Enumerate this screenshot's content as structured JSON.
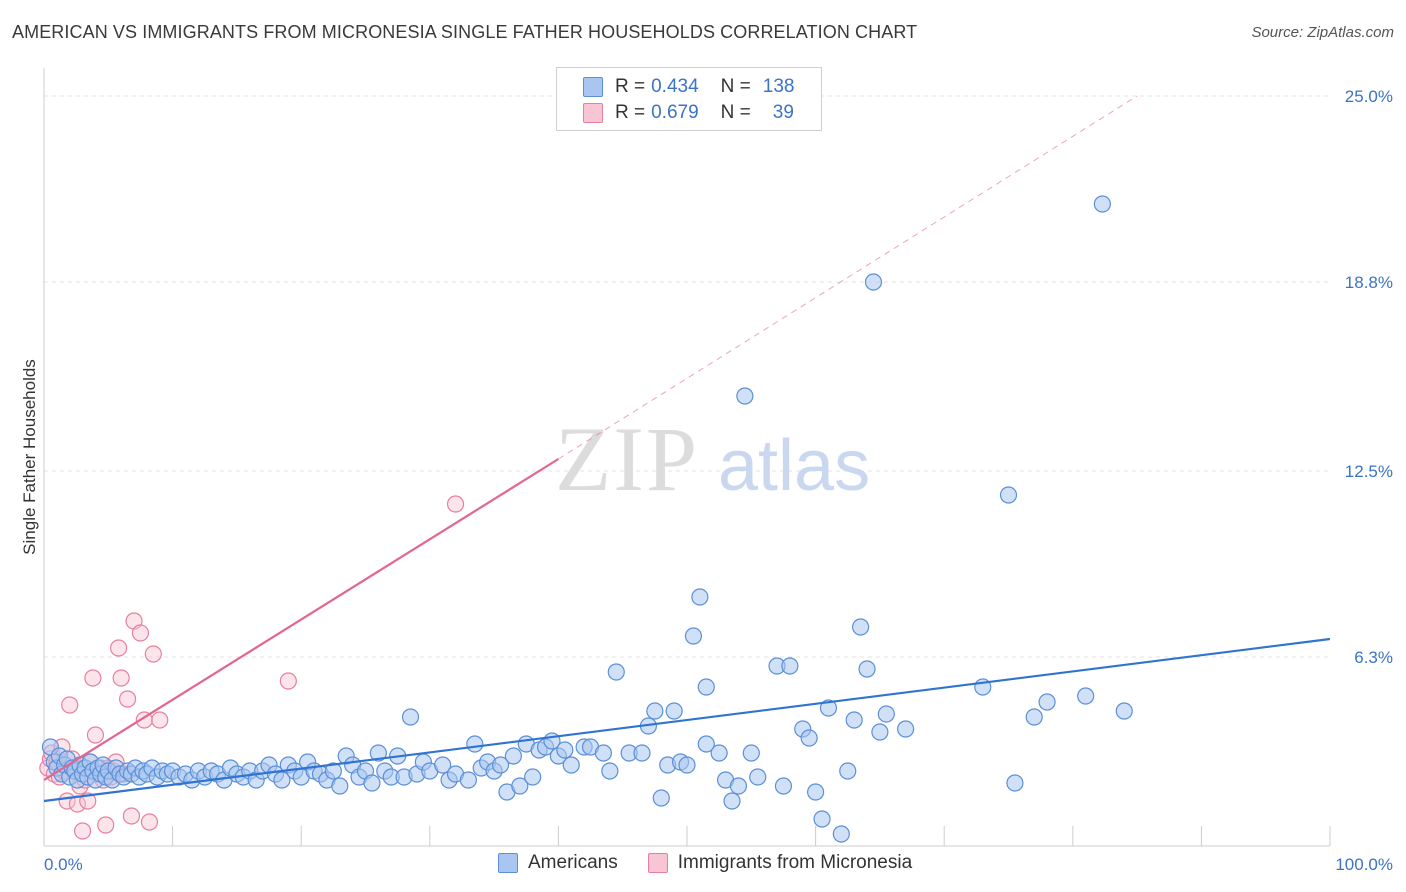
{
  "title": "AMERICAN VS IMMIGRANTS FROM MICRONESIA SINGLE FATHER HOUSEHOLDS CORRELATION CHART",
  "source": "Source: ZipAtlas.com",
  "watermark": {
    "zip": "ZIP",
    "atlas": "atlas"
  },
  "legend": {
    "r_label": "R =",
    "n_label": "N =",
    "americans": {
      "r": "0.434",
      "n": "138"
    },
    "micronesia": {
      "r": "0.679",
      "n": "39"
    }
  },
  "bottom_legend": {
    "americans": "Americans",
    "micronesia": "Immigrants from Micronesia"
  },
  "colors": {
    "americans_fill": "#a9c6f0",
    "americans_stroke": "#5b8fd8",
    "americans_line": "#2f74d0",
    "micronesia_fill": "#f7c5d3",
    "micronesia_stroke": "#e87ea0",
    "micronesia_line": "#e2668e",
    "grid": "#e3e3e3",
    "tick_label": "#3b73c8"
  },
  "chart_data": {
    "type": "scatter",
    "title": "AMERICAN VS IMMIGRANTS FROM MICRONESIA SINGLE FATHER HOUSEHOLDS CORRELATION CHART",
    "xlabel": "",
    "ylabel": "Single Father Households",
    "xlim": [
      0,
      100
    ],
    "ylim": [
      0,
      25.8
    ],
    "x_tick_labels": [
      "0.0%",
      "100.0%"
    ],
    "y_ticks": [
      6.3,
      12.5,
      18.8,
      25.0
    ],
    "y_tick_labels": [
      "6.3%",
      "12.5%",
      "18.8%",
      "25.0%"
    ],
    "grid": true,
    "legend_position": "top-center",
    "series": [
      {
        "name": "Americans",
        "trend": {
          "x": [
            0,
            100
          ],
          "y": [
            1.5,
            6.9
          ]
        },
        "points": [
          [
            0.5,
            3.3
          ],
          [
            0.8,
            2.8
          ],
          [
            1.0,
            2.6
          ],
          [
            1.2,
            3.0
          ],
          [
            1.4,
            2.4
          ],
          [
            1.6,
            2.7
          ],
          [
            1.8,
            2.9
          ],
          [
            2.0,
            2.3
          ],
          [
            2.2,
            2.6
          ],
          [
            2.4,
            2.5
          ],
          [
            2.6,
            2.2
          ],
          [
            2.8,
            2.7
          ],
          [
            3.0,
            2.4
          ],
          [
            3.2,
            2.6
          ],
          [
            3.4,
            2.3
          ],
          [
            3.6,
            2.8
          ],
          [
            3.8,
            2.5
          ],
          [
            4.0,
            2.2
          ],
          [
            4.2,
            2.6
          ],
          [
            4.4,
            2.4
          ],
          [
            4.6,
            2.7
          ],
          [
            4.8,
            2.3
          ],
          [
            5.0,
            2.5
          ],
          [
            5.3,
            2.2
          ],
          [
            5.6,
            2.6
          ],
          [
            5.9,
            2.4
          ],
          [
            6.2,
            2.3
          ],
          [
            6.5,
            2.5
          ],
          [
            6.8,
            2.4
          ],
          [
            7.1,
            2.6
          ],
          [
            7.4,
            2.3
          ],
          [
            7.7,
            2.5
          ],
          [
            8.0,
            2.4
          ],
          [
            8.4,
            2.6
          ],
          [
            8.8,
            2.3
          ],
          [
            9.2,
            2.5
          ],
          [
            9.6,
            2.4
          ],
          [
            10.0,
            2.5
          ],
          [
            10.5,
            2.3
          ],
          [
            11.0,
            2.4
          ],
          [
            11.5,
            2.2
          ],
          [
            12.0,
            2.5
          ],
          [
            12.5,
            2.3
          ],
          [
            13.0,
            2.5
          ],
          [
            13.5,
            2.4
          ],
          [
            14.0,
            2.2
          ],
          [
            14.5,
            2.6
          ],
          [
            15.0,
            2.4
          ],
          [
            15.5,
            2.3
          ],
          [
            16.0,
            2.5
          ],
          [
            16.5,
            2.2
          ],
          [
            17.0,
            2.5
          ],
          [
            17.5,
            2.7
          ],
          [
            18.0,
            2.4
          ],
          [
            18.5,
            2.2
          ],
          [
            19.0,
            2.7
          ],
          [
            19.5,
            2.5
          ],
          [
            20.0,
            2.3
          ],
          [
            20.5,
            2.8
          ],
          [
            21.0,
            2.5
          ],
          [
            21.5,
            2.4
          ],
          [
            22.0,
            2.2
          ],
          [
            22.5,
            2.5
          ],
          [
            23.0,
            2.0
          ],
          [
            23.5,
            3.0
          ],
          [
            24.0,
            2.7
          ],
          [
            24.5,
            2.3
          ],
          [
            25.0,
            2.5
          ],
          [
            25.5,
            2.1
          ],
          [
            26.0,
            3.1
          ],
          [
            26.5,
            2.5
          ],
          [
            27.0,
            2.3
          ],
          [
            27.5,
            3.0
          ],
          [
            28.0,
            2.3
          ],
          [
            28.5,
            4.3
          ],
          [
            29.0,
            2.4
          ],
          [
            29.5,
            2.8
          ],
          [
            30.0,
            2.5
          ],
          [
            31.0,
            2.7
          ],
          [
            31.5,
            2.2
          ],
          [
            32.0,
            2.4
          ],
          [
            33.0,
            2.2
          ],
          [
            33.5,
            3.4
          ],
          [
            34.0,
            2.6
          ],
          [
            34.5,
            2.8
          ],
          [
            35.0,
            2.5
          ],
          [
            35.5,
            2.7
          ],
          [
            36.0,
            1.8
          ],
          [
            36.5,
            3.0
          ],
          [
            37.0,
            2.0
          ],
          [
            37.5,
            3.4
          ],
          [
            38.0,
            2.3
          ],
          [
            38.5,
            3.2
          ],
          [
            39.0,
            3.3
          ],
          [
            39.5,
            3.5
          ],
          [
            40.0,
            3.0
          ],
          [
            40.5,
            3.2
          ],
          [
            41.0,
            2.7
          ],
          [
            42.0,
            3.3
          ],
          [
            42.5,
            3.3
          ],
          [
            43.5,
            3.1
          ],
          [
            44.0,
            2.5
          ],
          [
            44.5,
            5.8
          ],
          [
            45.5,
            3.1
          ],
          [
            46.5,
            3.1
          ],
          [
            47.0,
            4.0
          ],
          [
            47.5,
            4.5
          ],
          [
            48.0,
            1.6
          ],
          [
            48.5,
            2.7
          ],
          [
            49.0,
            4.5
          ],
          [
            49.5,
            2.8
          ],
          [
            50.0,
            2.7
          ],
          [
            50.5,
            7.0
          ],
          [
            51.0,
            8.3
          ],
          [
            51.5,
            5.3
          ],
          [
            51.5,
            3.4
          ],
          [
            52.5,
            3.1
          ],
          [
            53.0,
            2.2
          ],
          [
            53.5,
            1.5
          ],
          [
            54.0,
            2.0
          ],
          [
            54.5,
            15.0
          ],
          [
            55.0,
            3.1
          ],
          [
            55.5,
            2.3
          ],
          [
            57.0,
            6.0
          ],
          [
            57.5,
            2.0
          ],
          [
            58.0,
            6.0
          ],
          [
            59.0,
            3.9
          ],
          [
            59.5,
            3.6
          ],
          [
            60.0,
            1.8
          ],
          [
            60.5,
            0.9
          ],
          [
            61.0,
            4.6
          ],
          [
            62.0,
            0.4
          ],
          [
            62.5,
            2.5
          ],
          [
            63.0,
            4.2
          ],
          [
            63.5,
            7.3
          ],
          [
            64.0,
            5.9
          ],
          [
            64.5,
            18.8
          ],
          [
            65.0,
            3.8
          ],
          [
            65.5,
            4.4
          ],
          [
            67.0,
            3.9
          ],
          [
            73.0,
            5.3
          ],
          [
            75.0,
            11.7
          ],
          [
            75.5,
            2.1
          ],
          [
            77.0,
            4.3
          ],
          [
            78.0,
            4.8
          ],
          [
            81.0,
            5.0
          ],
          [
            84.0,
            4.5
          ],
          [
            82.3,
            21.4
          ]
        ]
      },
      {
        "name": "Immigrants from Micronesia",
        "trend": {
          "x": [
            0,
            40
          ],
          "y": [
            2.2,
            12.9
          ]
        },
        "trend_extension": {
          "x": [
            40,
            85
          ],
          "y": [
            12.9,
            25.0
          ]
        },
        "points": [
          [
            0.3,
            2.6
          ],
          [
            0.5,
            2.9
          ],
          [
            0.6,
            3.1
          ],
          [
            0.8,
            2.4
          ],
          [
            1.0,
            2.8
          ],
          [
            1.2,
            2.3
          ],
          [
            1.4,
            3.3
          ],
          [
            1.6,
            2.5
          ],
          [
            1.8,
            1.5
          ],
          [
            2.0,
            4.7
          ],
          [
            2.2,
            2.9
          ],
          [
            2.4,
            2.6
          ],
          [
            2.6,
            1.4
          ],
          [
            2.8,
            2.0
          ],
          [
            3.0,
            0.5
          ],
          [
            3.2,
            2.2
          ],
          [
            3.4,
            1.5
          ],
          [
            3.6,
            2.8
          ],
          [
            3.8,
            5.6
          ],
          [
            4.0,
            3.7
          ],
          [
            4.2,
            2.4
          ],
          [
            4.4,
            2.6
          ],
          [
            4.6,
            2.2
          ],
          [
            4.8,
            0.7
          ],
          [
            5.0,
            2.6
          ],
          [
            5.2,
            2.3
          ],
          [
            5.4,
            2.5
          ],
          [
            5.6,
            2.8
          ],
          [
            5.8,
            6.6
          ],
          [
            6.0,
            5.6
          ],
          [
            6.2,
            2.4
          ],
          [
            6.5,
            4.9
          ],
          [
            6.8,
            1.0
          ],
          [
            7.0,
            7.5
          ],
          [
            7.5,
            7.1
          ],
          [
            7.8,
            4.2
          ],
          [
            8.2,
            0.8
          ],
          [
            8.5,
            6.4
          ],
          [
            9.0,
            4.2
          ],
          [
            19.0,
            5.5
          ],
          [
            32.0,
            11.4
          ]
        ]
      }
    ]
  }
}
